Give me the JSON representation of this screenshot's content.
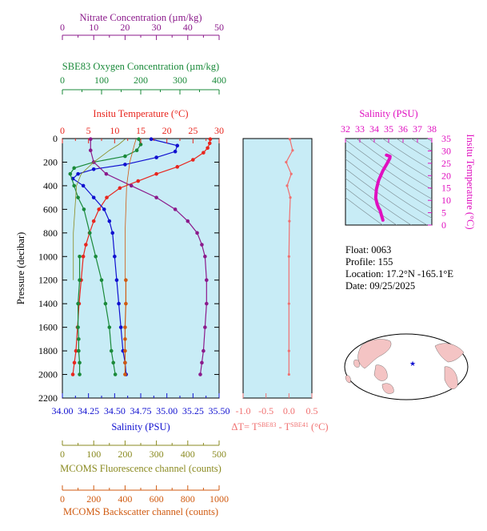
{
  "colors": {
    "panel_bg": "#c8ecf6",
    "nitrate": "#8b1a8b",
    "oxygen": "#1a8a3a",
    "temperature": "#e8261e",
    "salinity": "#1010d0",
    "fluorescence": "#8a8a20",
    "backscatter": "#d05a10",
    "delta_t": "#f07070",
    "inset_curve": "#e010c0",
    "land": "#f4c4c4"
  },
  "info": {
    "float": "Float:  0063",
    "profile": "Profile:  155",
    "location": "Location:  17.2°N  -165.1°E",
    "date": "Date:  09/25/2025"
  },
  "chart_data": [
    {
      "type": "line",
      "title": "",
      "ylabel": "Pressure (decibar)",
      "ylim": [
        2200,
        0
      ],
      "yticks": [
        "0",
        "200",
        "400",
        "600",
        "800",
        "1000",
        "1200",
        "1400",
        "1600",
        "1800",
        "2000",
        "2200"
      ],
      "grid": false,
      "axes": {
        "nitrate": {
          "label": "Nitrate Concentration (µm/kg)",
          "range": [
            0,
            50
          ],
          "ticks": [
            "0",
            "10",
            "20",
            "30",
            "40",
            "50"
          ]
        },
        "oxygen": {
          "label": "SBE83 Oxygen Concentration (µm/kg)",
          "range": [
            0,
            400
          ],
          "ticks": [
            "0",
            "100",
            "200",
            "300",
            "400"
          ]
        },
        "temperature": {
          "label": "Insitu Temperature (°C)",
          "range": [
            0,
            30
          ],
          "ticks": [
            "0",
            "5",
            "10",
            "15",
            "20",
            "25",
            "30"
          ]
        },
        "salinity": {
          "label": "Salinity (PSU)",
          "range": [
            34.0,
            35.5
          ],
          "ticks": [
            "34.00",
            "34.25",
            "34.50",
            "34.75",
            "35.00",
            "35.25",
            "35.50"
          ]
        },
        "fluorescence": {
          "label": "MCOMS Fluorescence channel (counts)",
          "range": [
            0,
            500
          ],
          "ticks": [
            "0",
            "100",
            "200",
            "300",
            "400",
            "500"
          ]
        },
        "backscatter": {
          "label": "MCOMS Backscatter channel (counts)",
          "range": [
            0,
            1000
          ],
          "ticks": [
            "0",
            "200",
            "400",
            "600",
            "800",
            "1000"
          ]
        }
      },
      "series": [
        {
          "name": "temperature",
          "axis": "temperature",
          "x": [
            28.3,
            28.2,
            27.8,
            27.0,
            25.0,
            22.0,
            18.0,
            14.5,
            11.0,
            8.5,
            7.0,
            6.0,
            5.2,
            4.5,
            4.0,
            3.6,
            3.2,
            2.9,
            2.6,
            2.3,
            2.0
          ],
          "y": [
            5,
            40,
            80,
            120,
            180,
            240,
            300,
            360,
            420,
            500,
            600,
            700,
            800,
            900,
            1000,
            1200,
            1400,
            1600,
            1800,
            1900,
            2000
          ]
        },
        {
          "name": "salinity",
          "axis": "salinity",
          "x": [
            34.85,
            35.1,
            35.08,
            34.9,
            34.6,
            34.3,
            34.15,
            34.1,
            34.2,
            34.3,
            34.4,
            34.45,
            34.48,
            34.5,
            34.52,
            34.54,
            34.56,
            34.58,
            34.6,
            34.61
          ],
          "y": [
            5,
            60,
            110,
            160,
            220,
            260,
            300,
            340,
            400,
            500,
            600,
            700,
            800,
            1000,
            1200,
            1400,
            1600,
            1800,
            1900,
            2000
          ]
        },
        {
          "name": "oxygen",
          "axis": "oxygen",
          "x": [
            195,
            200,
            190,
            160,
            80,
            30,
            20,
            30,
            40,
            55,
            70,
            85,
            100,
            110,
            120,
            125,
            130,
            135
          ],
          "y": [
            5,
            50,
            100,
            150,
            200,
            250,
            300,
            400,
            500,
            600,
            800,
            1000,
            1200,
            1400,
            1600,
            1800,
            1900,
            2000
          ]
        },
        {
          "name": "nitrate",
          "axis": "nitrate",
          "x": [
            9,
            9,
            10,
            14,
            22,
            30,
            36,
            40,
            43,
            44.5,
            45.5,
            46,
            46,
            45.5,
            45,
            44.5,
            44
          ],
          "y": [
            5,
            100,
            200,
            300,
            400,
            500,
            600,
            700,
            800,
            900,
            1000,
            1200,
            1400,
            1600,
            1800,
            1900,
            2000
          ]
        },
        {
          "name": "fluorescence",
          "axis": "fluorescence",
          "x": [
            200,
            180,
            150,
            100,
            60,
            45,
            40,
            35,
            35,
            35
          ],
          "y": [
            5,
            50,
            100,
            200,
            300,
            400,
            600,
            800,
            1000,
            1200
          ]
        },
        {
          "name": "fluorescence_sparse",
          "axis": "fluorescence",
          "x": [
            55,
            55,
            50,
            50,
            52,
            52,
            55,
            55
          ],
          "y": [
            1000,
            1200,
            1400,
            1600,
            1700,
            1800,
            1900,
            2000
          ]
        },
        {
          "name": "backscatter",
          "axis": "backscatter",
          "x": [
            470,
            460,
            450,
            430,
            420,
            410,
            405,
            400,
            400,
            400
          ],
          "y": [
            5,
            50,
            100,
            200,
            300,
            400,
            600,
            800,
            1000,
            1200
          ]
        },
        {
          "name": "backscatter_sparse",
          "axis": "backscatter",
          "x": [
            405,
            405,
            400,
            400,
            400,
            400,
            400
          ],
          "y": [
            1200,
            1400,
            1600,
            1700,
            1800,
            1900,
            2000
          ]
        }
      ]
    },
    {
      "type": "line",
      "title": "",
      "xlabel": "ΔT= T^SBE83 - T^SBE41 (°C)",
      "xlim": [
        -1.0,
        0.5
      ],
      "xticks": [
        "-1.0",
        "-0.5",
        "0.0",
        "0.5"
      ],
      "ylim": [
        2200,
        0
      ],
      "series": [
        {
          "name": "delta_t",
          "x": [
            0.02,
            0.08,
            -0.06,
            0.05,
            -0.04,
            0.03,
            0.01,
            0.0,
            0.0,
            0.0,
            0.0
          ],
          "y": [
            5,
            100,
            200,
            300,
            400,
            500,
            700,
            1000,
            1400,
            1800,
            2000
          ]
        }
      ]
    },
    {
      "type": "scatter",
      "title": "",
      "xlabel": "Salinity (PSU)",
      "ylabel": "Insitu Temperature (°C)",
      "xlim": [
        32,
        38
      ],
      "ylim": [
        0,
        35
      ],
      "xticks": [
        "32",
        "33",
        "34",
        "35",
        "36",
        "37",
        "38"
      ],
      "yticks": [
        "0",
        "5",
        "10",
        "15",
        "20",
        "25",
        "30",
        "35"
      ],
      "series": [
        {
          "name": "ts",
          "x": [
            34.85,
            35.1,
            35.08,
            34.9,
            34.6,
            34.3,
            34.15,
            34.1,
            34.2,
            34.3,
            34.4,
            34.5,
            34.55,
            34.6
          ],
          "y": [
            28.3,
            27.8,
            27.0,
            25.0,
            22.0,
            18.0,
            14.5,
            11.0,
            8.5,
            7.0,
            6.0,
            4.0,
            3.0,
            2.0
          ]
        }
      ]
    }
  ]
}
